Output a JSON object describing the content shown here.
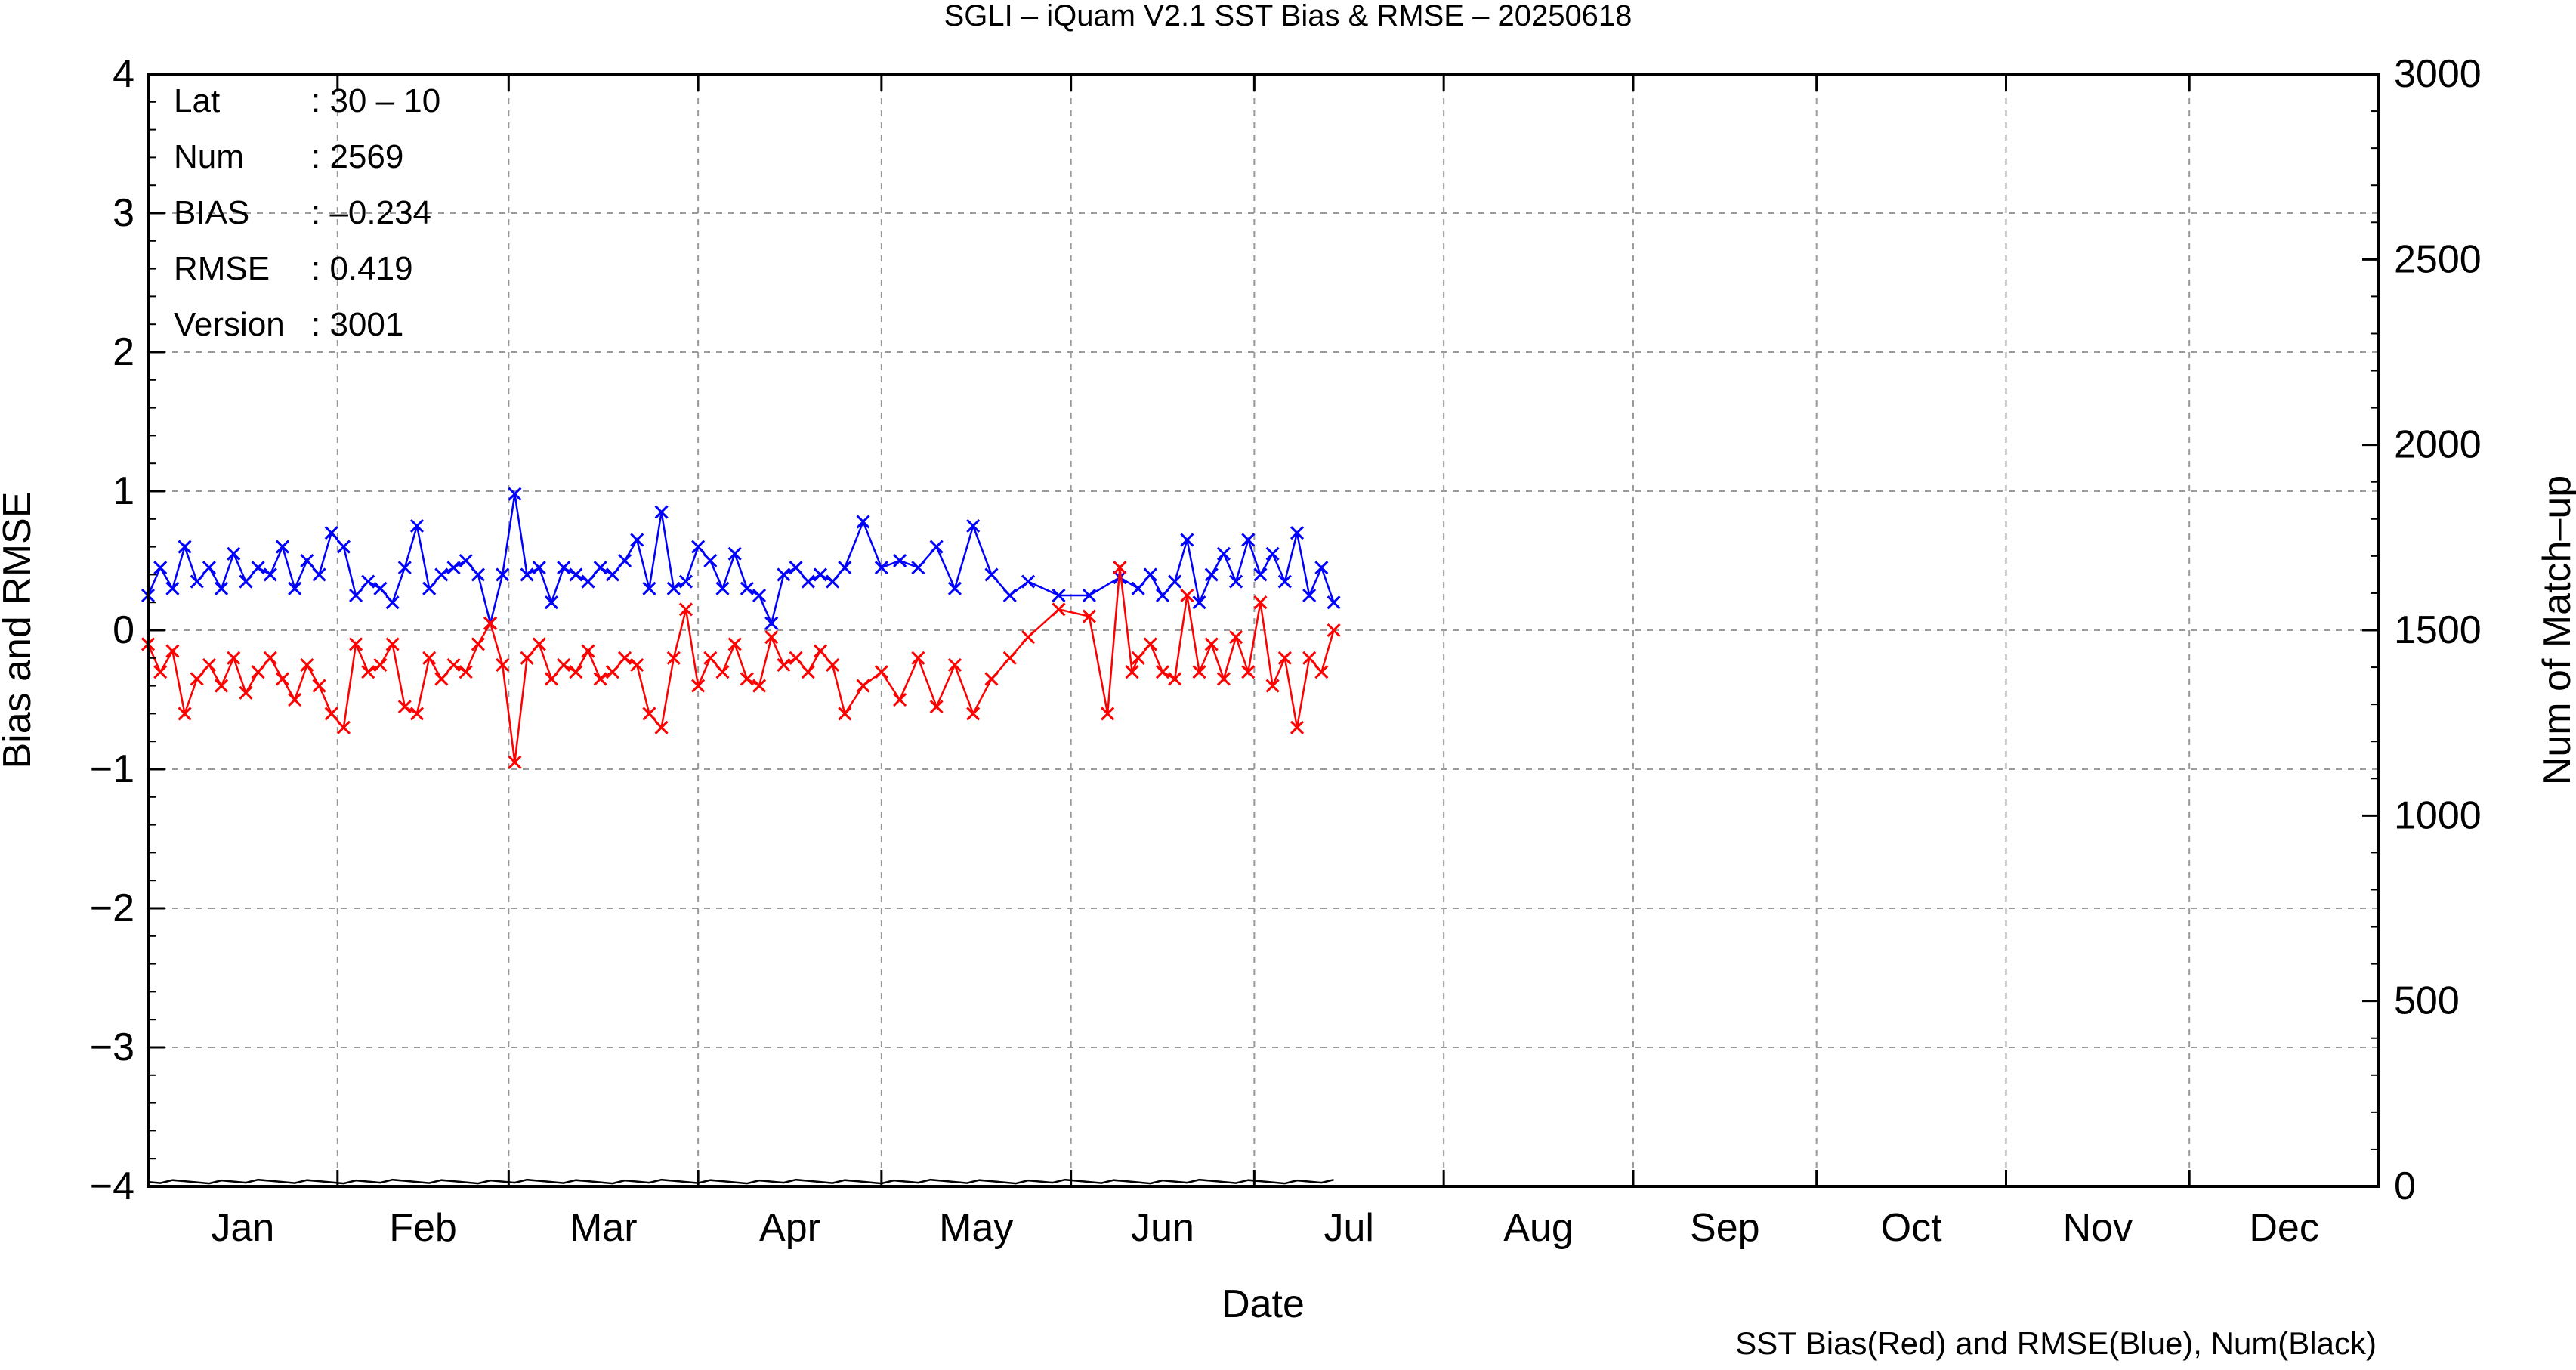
{
  "chart_data": {
    "type": "line",
    "title": "SGLI – iQuam V2.1 SST Bias & RMSE  – 20250618",
    "xlabel": "Date",
    "ylabel_left": "Bias and RMSE",
    "ylabel_right": "Num of Match–up",
    "footnote": "SST Bias(Red) and RMSE(Blue), Num(Black)",
    "x_range_day_of_year": [
      1,
      366
    ],
    "ylim_left": [
      -4,
      4
    ],
    "ylim_right": [
      0,
      3000
    ],
    "y_ticks_left": [
      "4",
      "3",
      "2",
      "1",
      "0",
      "−1",
      "−2",
      "−3",
      "−4"
    ],
    "y_ticks_right": [
      "3000",
      "2500",
      "2000",
      "1500",
      "1000",
      "500",
      "0"
    ],
    "x_tick_labels": [
      "Jan",
      "Feb",
      "Mar",
      "Apr",
      "May",
      "Jun",
      "Jul",
      "Aug",
      "Sep",
      "Oct",
      "Nov",
      "Dec"
    ],
    "grid": true,
    "colors": {
      "bias": "#ff0000",
      "rmse": "#0000ff",
      "num": "#000000",
      "grid": "#9a9a9a"
    },
    "info_box": [
      {
        "key": "Lat",
        "value": ": 30 – 10"
      },
      {
        "key": "Num",
        "value": ": 2569"
      },
      {
        "key": "BIAS",
        "value": ": –0.234"
      },
      {
        "key": "RMSE",
        "value": ": 0.419"
      },
      {
        "key": "Version",
        "value": ": 3001"
      }
    ],
    "series": [
      {
        "label": "RMSE",
        "color": "#0000ff",
        "x": [
          1,
          3,
          5,
          7,
          9,
          11,
          13,
          15,
          17,
          19,
          21,
          23,
          25,
          27,
          29,
          31,
          33,
          35,
          37,
          39,
          41,
          43,
          45,
          47,
          49,
          51,
          53,
          55,
          57,
          59,
          61,
          63,
          65,
          67,
          69,
          71,
          73,
          75,
          77,
          79,
          81,
          83,
          85,
          87,
          89,
          91,
          93,
          95,
          97,
          99,
          101,
          103,
          105,
          107,
          109,
          111,
          113,
          115,
          118,
          121,
          124,
          127,
          130,
          133,
          136,
          139,
          142,
          145,
          150,
          155,
          160,
          163,
          165,
          167,
          169,
          171,
          173,
          175,
          177,
          179,
          181,
          183,
          185,
          187,
          189,
          191,
          193,
          195
        ],
        "values": [
          0.25,
          0.45,
          0.3,
          0.6,
          0.35,
          0.45,
          0.3,
          0.55,
          0.35,
          0.45,
          0.4,
          0.6,
          0.3,
          0.5,
          0.4,
          0.7,
          0.6,
          0.25,
          0.35,
          0.3,
          0.2,
          0.45,
          0.75,
          0.3,
          0.4,
          0.45,
          0.5,
          0.4,
          0.05,
          0.4,
          0.98,
          0.4,
          0.45,
          0.2,
          0.45,
          0.4,
          0.35,
          0.45,
          0.4,
          0.5,
          0.65,
          0.3,
          0.85,
          0.3,
          0.35,
          0.6,
          0.5,
          0.3,
          0.55,
          0.3,
          0.25,
          0.05,
          0.4,
          0.45,
          0.35,
          0.4,
          0.35,
          0.45,
          0.78,
          0.45,
          0.5,
          0.45,
          0.6,
          0.3,
          0.75,
          0.4,
          0.25,
          0.35,
          0.25,
          0.25,
          0.38,
          0.3,
          0.4,
          0.25,
          0.35,
          0.65,
          0.2,
          0.4,
          0.55,
          0.35,
          0.65,
          0.4,
          0.55,
          0.35,
          0.7,
          0.25,
          0.45,
          0.2
        ]
      },
      {
        "label": "Bias",
        "color": "#ff0000",
        "x": [
          1,
          3,
          5,
          7,
          9,
          11,
          13,
          15,
          17,
          19,
          21,
          23,
          25,
          27,
          29,
          31,
          33,
          35,
          37,
          39,
          41,
          43,
          45,
          47,
          49,
          51,
          53,
          55,
          57,
          59,
          61,
          63,
          65,
          67,
          69,
          71,
          73,
          75,
          77,
          79,
          81,
          83,
          85,
          87,
          89,
          91,
          93,
          95,
          97,
          99,
          101,
          103,
          105,
          107,
          109,
          111,
          113,
          115,
          118,
          121,
          124,
          127,
          130,
          133,
          136,
          139,
          142,
          145,
          150,
          155,
          158,
          160,
          162,
          163,
          165,
          167,
          169,
          171,
          173,
          175,
          177,
          179,
          181,
          183,
          185,
          187,
          189,
          191,
          193,
          195
        ],
        "values": [
          -0.1,
          -0.3,
          -0.15,
          -0.6,
          -0.35,
          -0.25,
          -0.4,
          -0.2,
          -0.45,
          -0.3,
          -0.2,
          -0.35,
          -0.5,
          -0.25,
          -0.4,
          -0.6,
          -0.7,
          -0.1,
          -0.3,
          -0.25,
          -0.1,
          -0.55,
          -0.6,
          -0.2,
          -0.35,
          -0.25,
          -0.3,
          -0.1,
          0.05,
          -0.25,
          -0.95,
          -0.2,
          -0.1,
          -0.35,
          -0.25,
          -0.3,
          -0.15,
          -0.35,
          -0.3,
          -0.2,
          -0.25,
          -0.6,
          -0.7,
          -0.2,
          0.15,
          -0.4,
          -0.2,
          -0.3,
          -0.1,
          -0.35,
          -0.4,
          -0.05,
          -0.25,
          -0.2,
          -0.3,
          -0.15,
          -0.25,
          -0.6,
          -0.4,
          -0.3,
          -0.5,
          -0.2,
          -0.55,
          -0.25,
          -0.6,
          -0.35,
          -0.2,
          -0.05,
          0.15,
          0.1,
          -0.6,
          0.45,
          -0.3,
          -0.2,
          -0.1,
          -0.3,
          -0.35,
          0.25,
          -0.3,
          -0.1,
          -0.35,
          -0.05,
          -0.3,
          0.2,
          -0.4,
          -0.2,
          -0.7,
          -0.2,
          -0.3,
          0.0
        ]
      }
    ]
  }
}
